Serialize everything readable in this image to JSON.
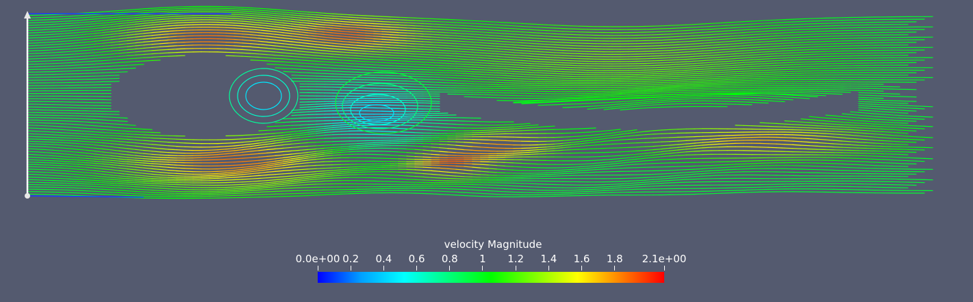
{
  "render": {
    "background": "#545a6f",
    "field": "velocity Magnitude",
    "visualization": "streamlines",
    "seed_line_color": "#ffffff",
    "colormap": [
      "#0000ff",
      "#00a0ff",
      "#00ffff",
      "#00ff80",
      "#00ff00",
      "#80ff00",
      "#ffff00",
      "#ff8000",
      "#ff0000"
    ],
    "range": [
      0.0,
      2.1
    ]
  },
  "legend": {
    "title": "velocity Magnitude",
    "ticks": [
      {
        "value": 0.0,
        "label": "0.0e+00"
      },
      {
        "value": 0.2,
        "label": "0.2"
      },
      {
        "value": 0.4,
        "label": "0.4"
      },
      {
        "value": 0.6,
        "label": "0.6"
      },
      {
        "value": 0.8,
        "label": "0.8"
      },
      {
        "value": 1.0,
        "label": "1"
      },
      {
        "value": 1.2,
        "label": "1.2"
      },
      {
        "value": 1.4,
        "label": "1.4"
      },
      {
        "value": 1.6,
        "label": "1.6"
      },
      {
        "value": 1.8,
        "label": "1.8"
      },
      {
        "value": 2.1,
        "label": "2.1e+00"
      }
    ]
  }
}
